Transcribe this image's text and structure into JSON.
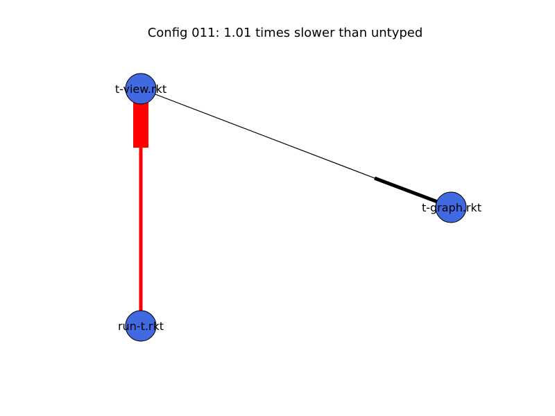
{
  "title": "Config 011: 1.01 times slower than untyped",
  "colors": {
    "node_fill": "#4169e1",
    "node_stroke": "#000000",
    "typed_boundary": "#ff0000",
    "untyped_edge": "#000000"
  },
  "nodes": [
    {
      "id": "t-view",
      "label": "t-view.rkt"
    },
    {
      "id": "t-graph",
      "label": "t-graph.rkt"
    },
    {
      "id": "run-t",
      "label": "run-t.rkt"
    }
  ],
  "edges": [
    {
      "from": "t-view",
      "to": "run-t",
      "color": "red"
    },
    {
      "from": "t-view",
      "to": "t-graph",
      "color": "black"
    }
  ]
}
